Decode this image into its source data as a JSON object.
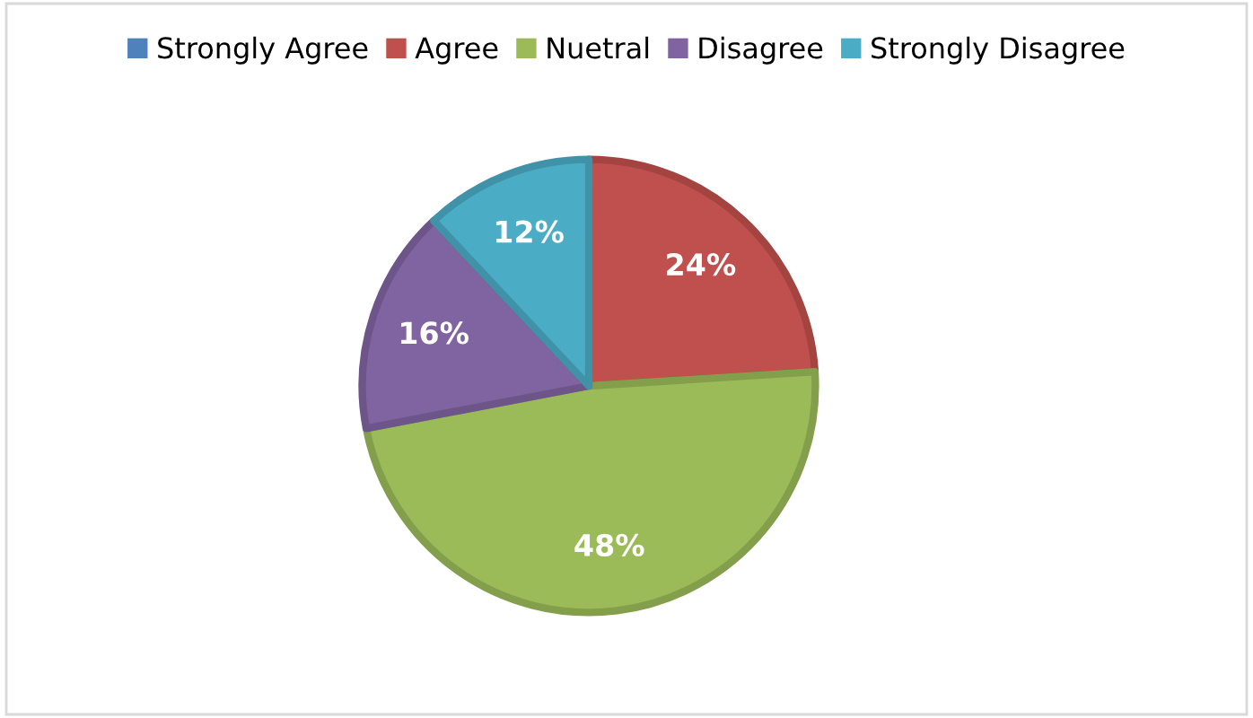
{
  "chart_data": {
    "type": "pie",
    "categories": [
      "Strongly Agree",
      "Agree",
      "Nuetral",
      "Disagree",
      "Strongly Disagree"
    ],
    "values": [
      0,
      24,
      48,
      16,
      12
    ],
    "colors": [
      "#4f81bd",
      "#c0504d",
      "#9bbb59",
      "#8064a2",
      "#4bacc6"
    ],
    "value_labels": [
      null,
      "24%",
      "48%",
      "16%",
      "12%"
    ],
    "legend": "top"
  }
}
